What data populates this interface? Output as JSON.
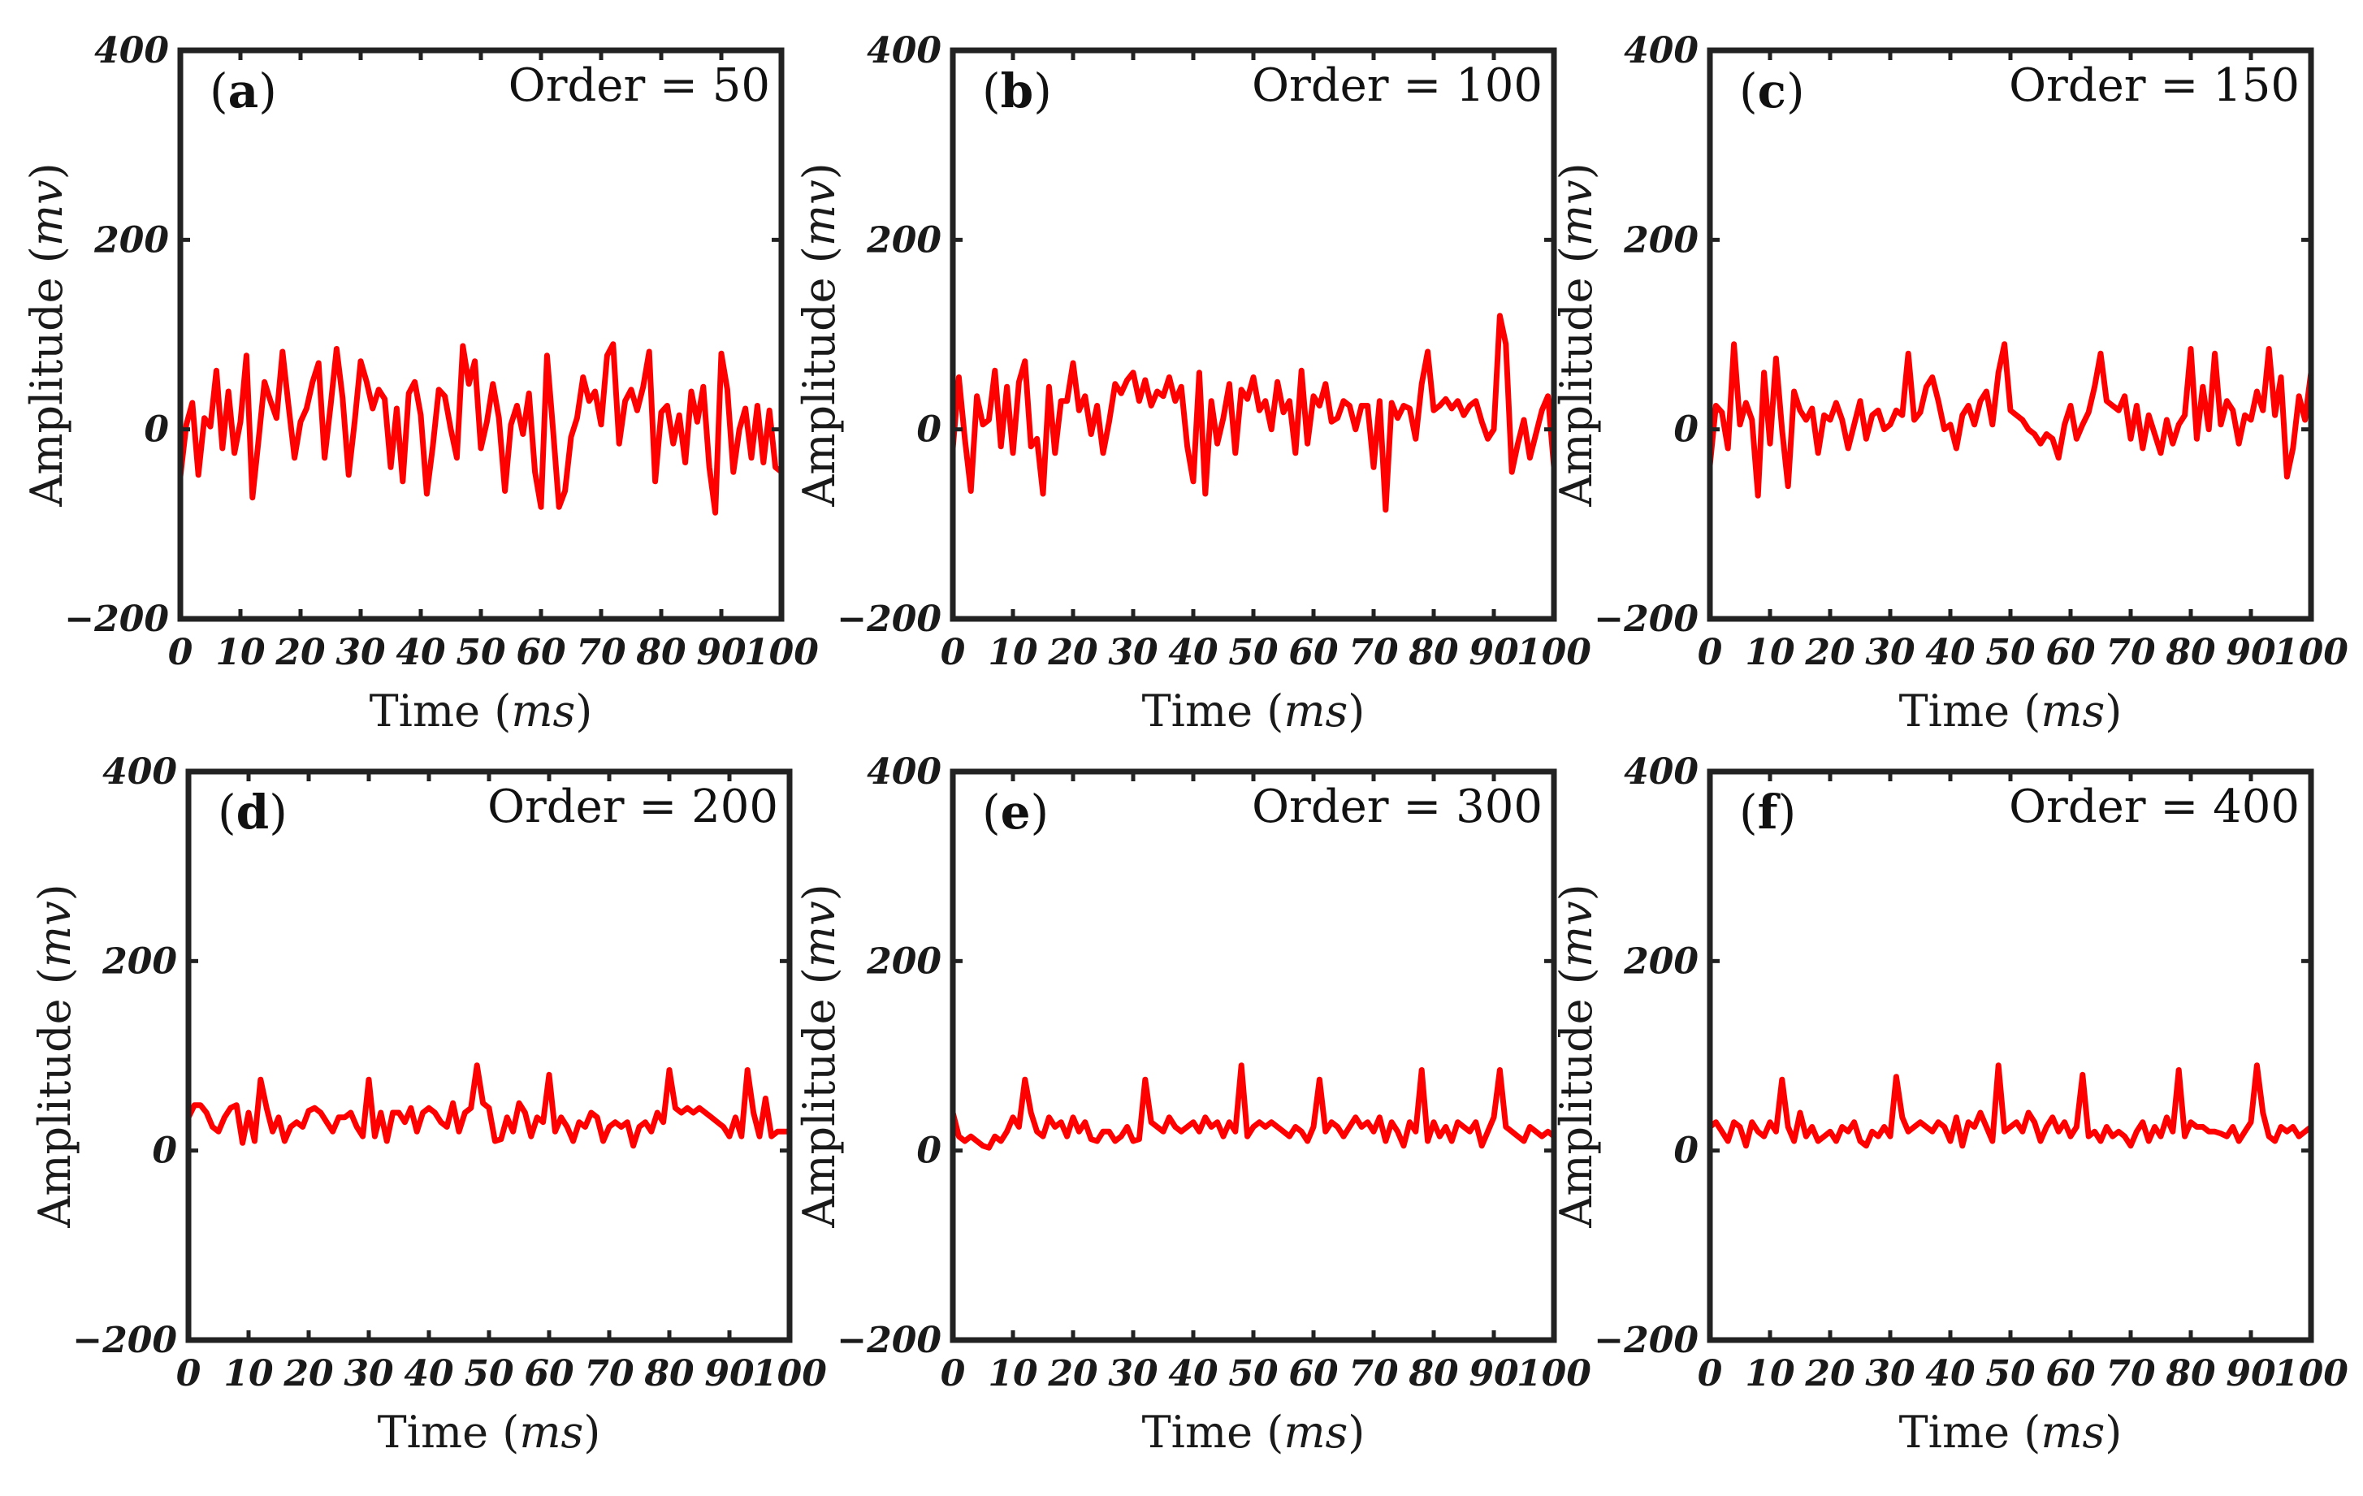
{
  "series_color": "#ff0000",
  "frame_color": "#222222",
  "chart_data": [
    {
      "type": "line",
      "panel_label": "a",
      "annotation": "Order = 50",
      "xlabel": "Time",
      "xlabel_unit": "ms",
      "ylabel": "Amplitude",
      "ylabel_unit": "mv",
      "xlim": [
        0,
        100
      ],
      "ylim": [
        -200,
        400
      ],
      "xticks": [
        0,
        10,
        20,
        30,
        40,
        50,
        60,
        70,
        80,
        90,
        100
      ],
      "yticks": [
        -200,
        0,
        200,
        400
      ],
      "ytick_labels": [
        "−200",
        "0",
        "200",
        "400"
      ],
      "grid": false,
      "values": [
        -50,
        5,
        28,
        -48,
        12,
        3,
        62,
        -20,
        40,
        -25,
        8,
        78,
        -72,
        -12,
        50,
        30,
        12,
        82,
        25,
        -30,
        8,
        22,
        50,
        70,
        -30,
        25,
        85,
        33,
        -48,
        8,
        72,
        50,
        22,
        42,
        32,
        -40,
        22,
        -55,
        38,
        50,
        15,
        -68,
        -18,
        42,
        35,
        0,
        -30,
        88,
        48,
        72,
        -20,
        8,
        48,
        12,
        -65,
        5,
        25,
        -5,
        38,
        -45,
        -82,
        78,
        0,
        -82,
        -65,
        -8,
        12,
        55,
        30,
        40,
        5,
        78,
        90,
        -15,
        30,
        42,
        20,
        45,
        82,
        -55,
        18,
        25,
        -15,
        15,
        -35,
        40,
        8,
        45,
        -40,
        -88,
        80,
        42,
        -45,
        0,
        22,
        -30,
        25,
        -35,
        20,
        -40,
        -45
      ]
    },
    {
      "type": "line",
      "panel_label": "b",
      "annotation": "Order = 100",
      "xlabel": "Time",
      "xlabel_unit": "ms",
      "ylabel": "Amplitude",
      "ylabel_unit": "mv",
      "xlim": [
        0,
        100
      ],
      "ylim": [
        -200,
        400
      ],
      "xticks": [
        0,
        10,
        20,
        30,
        40,
        50,
        60,
        70,
        80,
        90,
        100
      ],
      "yticks": [
        -200,
        0,
        200,
        400
      ],
      "ytick_labels": [
        "−200",
        "0",
        "200",
        "400"
      ],
      "grid": false,
      "values": [
        -20,
        55,
        -10,
        -65,
        35,
        5,
        10,
        62,
        -18,
        45,
        -25,
        50,
        72,
        -18,
        -10,
        -68,
        45,
        -25,
        30,
        30,
        70,
        20,
        35,
        -5,
        25,
        -25,
        8,
        48,
        38,
        52,
        60,
        30,
        52,
        25,
        40,
        35,
        55,
        30,
        45,
        -18,
        -55,
        60,
        -68,
        30,
        -15,
        12,
        48,
        -25,
        42,
        32,
        55,
        20,
        30,
        0,
        50,
        18,
        30,
        -25,
        62,
        -15,
        35,
        25,
        48,
        8,
        12,
        30,
        25,
        0,
        25,
        25,
        -40,
        30,
        -85,
        28,
        12,
        25,
        22,
        -10,
        48,
        82,
        20,
        25,
        32,
        22,
        30,
        15,
        25,
        30,
        8,
        -10,
        0,
        120,
        90,
        -45,
        -15,
        10,
        -30,
        -5,
        20,
        35,
        -40
      ]
    },
    {
      "type": "line",
      "panel_label": "c",
      "annotation": "Order = 150",
      "xlabel": "Time",
      "xlabel_unit": "ms",
      "ylabel": "Amplitude",
      "ylabel_unit": "mv",
      "xlim": [
        0,
        100
      ],
      "ylim": [
        -200,
        400
      ],
      "xticks": [
        0,
        10,
        20,
        30,
        40,
        50,
        60,
        70,
        80,
        90,
        100
      ],
      "yticks": [
        -200,
        0,
        200,
        400
      ],
      "ytick_labels": [
        "−200",
        "0",
        "200",
        "400"
      ],
      "grid": false,
      "values": [
        -38,
        25,
        18,
        -20,
        90,
        5,
        28,
        10,
        -70,
        60,
        -15,
        75,
        0,
        -60,
        40,
        20,
        10,
        22,
        -25,
        15,
        10,
        28,
        10,
        -20,
        5,
        30,
        -10,
        15,
        20,
        0,
        5,
        20,
        15,
        80,
        10,
        18,
        45,
        55,
        30,
        0,
        5,
        -20,
        15,
        25,
        5,
        30,
        40,
        5,
        60,
        90,
        20,
        15,
        10,
        0,
        -5,
        -15,
        -5,
        -10,
        -30,
        5,
        25,
        -10,
        5,
        18,
        45,
        80,
        30,
        25,
        20,
        35,
        -10,
        25,
        -20,
        15,
        -5,
        -25,
        10,
        -15,
        5,
        15,
        85,
        -10,
        45,
        0,
        80,
        5,
        30,
        20,
        -15,
        15,
        10,
        40,
        20,
        85,
        15,
        55,
        -50,
        -20,
        35,
        10,
        60
      ]
    },
    {
      "type": "line",
      "panel_label": "d",
      "annotation": "Order = 200",
      "xlabel": "Time",
      "xlabel_unit": "ms",
      "ylabel": "Amplitude",
      "ylabel_unit": "mv",
      "xlim": [
        0,
        100
      ],
      "ylim": [
        -200,
        400
      ],
      "xticks": [
        0,
        10,
        20,
        30,
        40,
        50,
        60,
        70,
        80,
        90,
        100
      ],
      "yticks": [
        -200,
        0,
        200,
        400
      ],
      "ytick_labels": [
        "−200",
        "0",
        "200",
        "400"
      ],
      "grid": false,
      "values": [
        35,
        48,
        48,
        40,
        25,
        20,
        35,
        45,
        48,
        8,
        40,
        10,
        75,
        45,
        20,
        35,
        10,
        25,
        30,
        25,
        42,
        45,
        40,
        30,
        20,
        35,
        35,
        40,
        25,
        15,
        75,
        15,
        40,
        10,
        40,
        40,
        30,
        45,
        20,
        40,
        45,
        40,
        30,
        25,
        50,
        20,
        40,
        45,
        90,
        50,
        45,
        10,
        12,
        35,
        20,
        50,
        40,
        15,
        35,
        30,
        80,
        20,
        35,
        25,
        10,
        30,
        25,
        40,
        35,
        10,
        25,
        30,
        25,
        30,
        5,
        25,
        30,
        20,
        40,
        30,
        85,
        45,
        40,
        45,
        40,
        45,
        40,
        35,
        30,
        25,
        15,
        35,
        15,
        85,
        40,
        15,
        55,
        15,
        20,
        20,
        20
      ]
    },
    {
      "type": "line",
      "panel_label": "e",
      "annotation": "Order = 300",
      "xlabel": "Time",
      "xlabel_unit": "ms",
      "ylabel": "Amplitude",
      "ylabel_unit": "mv",
      "xlim": [
        0,
        100
      ],
      "ylim": [
        -200,
        400
      ],
      "xticks": [
        0,
        10,
        20,
        30,
        40,
        50,
        60,
        70,
        80,
        90,
        100
      ],
      "yticks": [
        -200,
        0,
        200,
        400
      ],
      "ytick_labels": [
        "−200",
        "0",
        "200",
        "400"
      ],
      "grid": false,
      "values": [
        40,
        15,
        10,
        15,
        10,
        5,
        3,
        15,
        10,
        20,
        35,
        25,
        75,
        40,
        20,
        15,
        35,
        25,
        30,
        15,
        35,
        20,
        30,
        12,
        10,
        20,
        20,
        10,
        15,
        25,
        10,
        12,
        75,
        30,
        25,
        20,
        35,
        25,
        20,
        25,
        30,
        20,
        35,
        25,
        30,
        15,
        30,
        20,
        90,
        15,
        25,
        30,
        25,
        30,
        25,
        20,
        15,
        25,
        20,
        10,
        25,
        75,
        20,
        30,
        25,
        15,
        25,
        35,
        25,
        30,
        20,
        35,
        10,
        30,
        20,
        5,
        30,
        20,
        85,
        10,
        30,
        15,
        25,
        10,
        30,
        25,
        20,
        30,
        5,
        20,
        35,
        85,
        25,
        20,
        15,
        10,
        25,
        20,
        15,
        20,
        15
      ]
    },
    {
      "type": "line",
      "panel_label": "f",
      "annotation": "Order = 400",
      "xlabel": "Time",
      "xlabel_unit": "ms",
      "ylabel": "Amplitude",
      "ylabel_unit": "mv",
      "xlim": [
        0,
        100
      ],
      "ylim": [
        -200,
        400
      ],
      "xticks": [
        0,
        10,
        20,
        30,
        40,
        50,
        60,
        70,
        80,
        90,
        100
      ],
      "yticks": [
        -200,
        0,
        200,
        400
      ],
      "ytick_labels": [
        "−200",
        "0",
        "200",
        "400"
      ],
      "grid": false,
      "values": [
        25,
        30,
        20,
        10,
        30,
        25,
        5,
        30,
        20,
        15,
        30,
        20,
        75,
        25,
        10,
        40,
        15,
        25,
        10,
        15,
        20,
        10,
        25,
        20,
        30,
        10,
        5,
        20,
        15,
        25,
        15,
        78,
        35,
        20,
        25,
        30,
        25,
        20,
        30,
        25,
        10,
        35,
        5,
        30,
        25,
        40,
        25,
        10,
        90,
        20,
        25,
        30,
        20,
        40,
        30,
        10,
        25,
        35,
        20,
        30,
        15,
        25,
        80,
        15,
        20,
        10,
        25,
        15,
        20,
        15,
        5,
        20,
        30,
        10,
        25,
        15,
        35,
        20,
        85,
        15,
        30,
        25,
        25,
        20,
        20,
        18,
        15,
        25,
        10,
        20,
        30,
        90,
        40,
        15,
        10,
        25,
        20,
        25,
        15,
        20,
        25
      ]
    }
  ]
}
